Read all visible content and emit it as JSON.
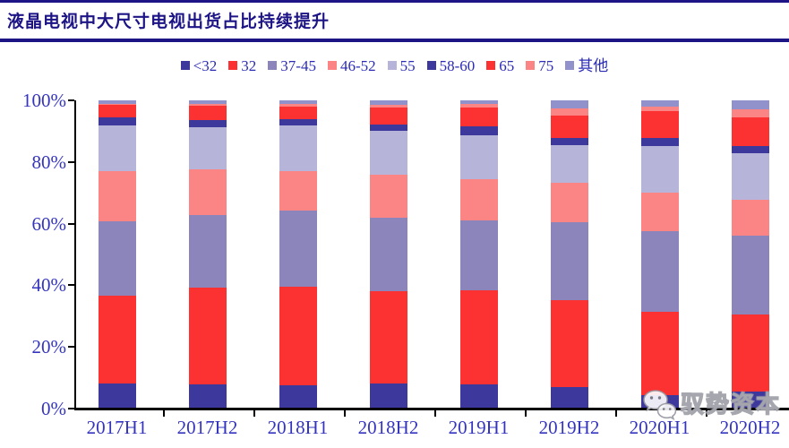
{
  "header": {
    "title": "液晶电视中大尺寸电视出货占比持续提升"
  },
  "watermark": {
    "icon": "wechat-icon",
    "label": "驭势资本"
  },
  "colors": {
    "title_navy": "#1d1486",
    "axis_text_blue": "#3434be",
    "axis_line_black": "#000000"
  },
  "chart_data": {
    "type": "bar",
    "stacked": true,
    "unit": "percent",
    "title": "液晶电视中大尺寸电视出货占比持续提升",
    "xlabel": "",
    "ylabel": "",
    "ylim": [
      0,
      100
    ],
    "y_ticks": [
      "0%",
      "20%",
      "40%",
      "60%",
      "80%",
      "100%"
    ],
    "grid": false,
    "legend_position": "top",
    "categories": [
      "2017H1",
      "2017H2",
      "2018H1",
      "2018H2",
      "2019H1",
      "2019H2",
      "2020H1",
      "2020H2"
    ],
    "series": [
      {
        "name": "<32",
        "color": "#3d389b",
        "values": [
          8.0,
          7.8,
          7.5,
          8.1,
          7.8,
          6.9,
          4.4,
          5.4
        ]
      },
      {
        "name": "32",
        "color": "#fc3232",
        "values": [
          28.5,
          31.5,
          32.0,
          30.0,
          30.5,
          28.2,
          27.1,
          25.0
        ]
      },
      {
        "name": "37-45",
        "color": "#8b85bc",
        "values": [
          24.3,
          23.6,
          24.8,
          23.7,
          22.9,
          25.3,
          26.1,
          25.6
        ]
      },
      {
        "name": "46-52",
        "color": "#fb8585",
        "values": [
          16.3,
          14.7,
          12.6,
          14.2,
          13.2,
          12.8,
          12.6,
          11.7
        ]
      },
      {
        "name": "55",
        "color": "#b7b4d9",
        "values": [
          14.9,
          13.7,
          15.1,
          14.1,
          14.4,
          12.3,
          15.1,
          15.2
        ]
      },
      {
        "name": "58-60",
        "color": "#3d389b",
        "values": [
          2.5,
          2.3,
          2.0,
          2.2,
          2.8,
          2.2,
          2.5,
          2.4
        ]
      },
      {
        "name": "65",
        "color": "#fc3232",
        "values": [
          4.0,
          4.6,
          4.0,
          5.5,
          6.2,
          7.3,
          8.8,
          9.2
        ]
      },
      {
        "name": "75",
        "color": "#fb8585",
        "values": [
          0.3,
          0.6,
          0.8,
          0.9,
          1.1,
          2.4,
          1.5,
          2.6
        ]
      },
      {
        "name": "其他",
        "color": "#9191cb",
        "values": [
          1.2,
          1.2,
          1.2,
          1.3,
          1.1,
          2.6,
          1.9,
          2.9
        ]
      }
    ]
  }
}
